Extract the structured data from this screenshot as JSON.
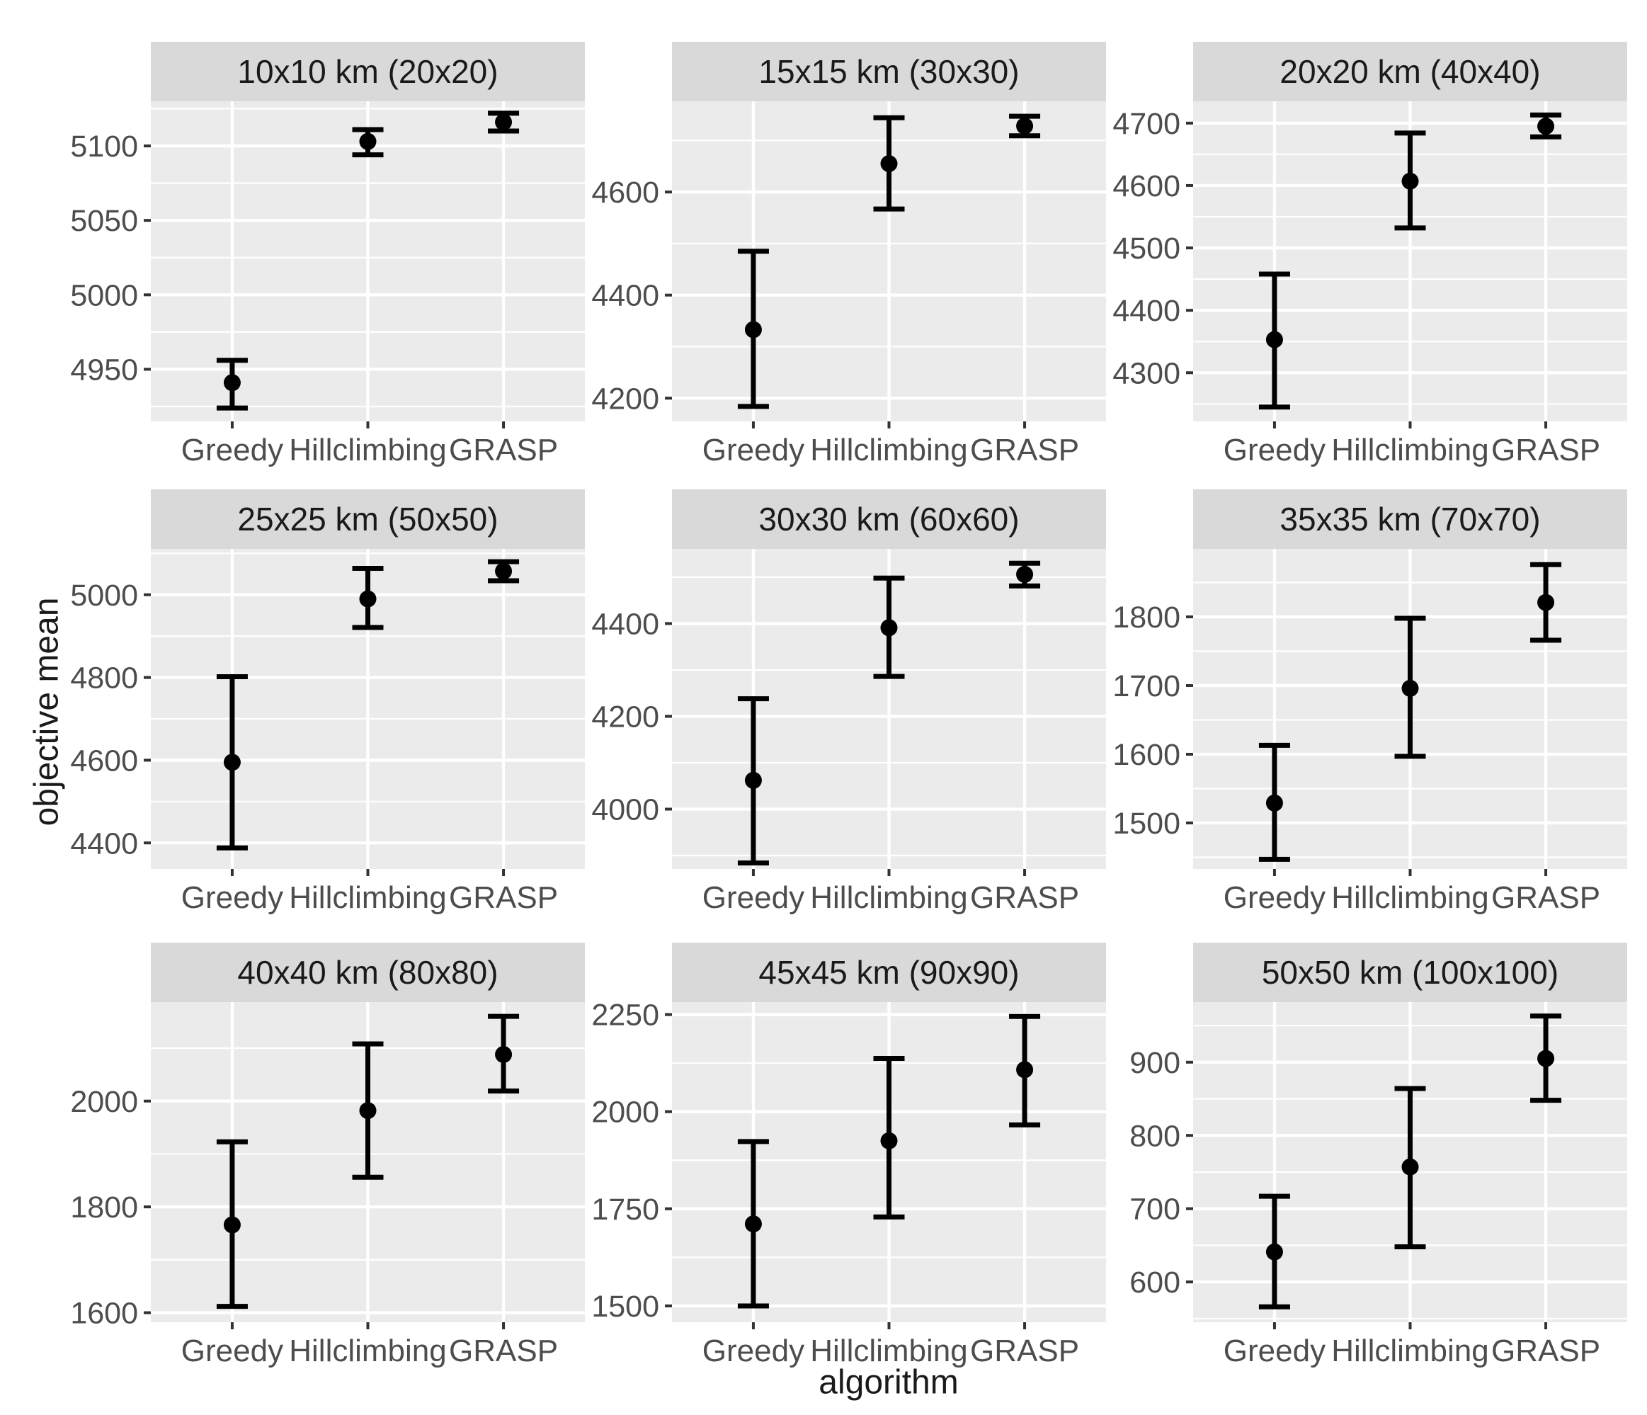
{
  "figure": {
    "ylabel": "objective mean",
    "xlabel": "algorithm"
  },
  "style": {
    "strip_fill": "#D9D9D9",
    "panel_fill": "#EBEBEB",
    "grid_color": "#FFFFFF",
    "tick_mark_color": "#333333",
    "tick_label_color": "#4D4D4D",
    "strip_text_color": "#1A1A1A",
    "axis_title_color": "#1A1A1A",
    "data_color": "#000000"
  },
  "chart_data": [
    {
      "type": "errorbar",
      "title": "10x10 km (20x20)",
      "categories": [
        "Greedy",
        "Hillclimbing",
        "GRASP"
      ],
      "yticks": [
        4950,
        5000,
        5050,
        5100
      ],
      "ylim": [
        4915,
        5130
      ],
      "grid": true,
      "series": [
        {
          "name": "Greedy",
          "mean": 4941,
          "lower": 4924,
          "upper": 4956
        },
        {
          "name": "Hillclimbing",
          "mean": 5103,
          "lower": 5094,
          "upper": 5111
        },
        {
          "name": "GRASP",
          "mean": 5116,
          "lower": 5110,
          "upper": 5122
        }
      ]
    },
    {
      "type": "errorbar",
      "title": "15x15 km (30x30)",
      "categories": [
        "Greedy",
        "Hillclimbing",
        "GRASP"
      ],
      "yticks": [
        4200,
        4400,
        4600
      ],
      "ylim": [
        4155,
        4776
      ],
      "grid": true,
      "series": [
        {
          "name": "Greedy",
          "mean": 4333,
          "lower": 4184,
          "upper": 4485
        },
        {
          "name": "Hillclimbing",
          "mean": 4655,
          "lower": 4567,
          "upper": 4744
        },
        {
          "name": "GRASP",
          "mean": 4728,
          "lower": 4709,
          "upper": 4747
        }
      ]
    },
    {
      "type": "errorbar",
      "title": "20x20 km (40x40)",
      "categories": [
        "Greedy",
        "Hillclimbing",
        "GRASP"
      ],
      "yticks": [
        4300,
        4400,
        4500,
        4600,
        4700
      ],
      "ylim": [
        4222,
        4735
      ],
      "grid": true,
      "series": [
        {
          "name": "Greedy",
          "mean": 4353,
          "lower": 4245,
          "upper": 4458
        },
        {
          "name": "Hillclimbing",
          "mean": 4607,
          "lower": 4532,
          "upper": 4684
        },
        {
          "name": "GRASP",
          "mean": 4695,
          "lower": 4678,
          "upper": 4713
        }
      ]
    },
    {
      "type": "errorbar",
      "title": "25x25 km (50x50)",
      "categories": [
        "Greedy",
        "Hillclimbing",
        "GRASP"
      ],
      "yticks": [
        4400,
        4600,
        4800,
        5000
      ],
      "ylim": [
        4337,
        5111
      ],
      "grid": true,
      "series": [
        {
          "name": "Greedy",
          "mean": 4595,
          "lower": 4388,
          "upper": 4802
        },
        {
          "name": "Hillclimbing",
          "mean": 4990,
          "lower": 4921,
          "upper": 5064
        },
        {
          "name": "GRASP",
          "mean": 5057,
          "lower": 5034,
          "upper": 5080
        }
      ]
    },
    {
      "type": "errorbar",
      "title": "30x30 km (60x60)",
      "categories": [
        "Greedy",
        "Hillclimbing",
        "GRASP"
      ],
      "yticks": [
        4000,
        4200,
        4400
      ],
      "ylim": [
        3871,
        4561
      ],
      "grid": true,
      "series": [
        {
          "name": "Greedy",
          "mean": 4062,
          "lower": 3884,
          "upper": 4238
        },
        {
          "name": "Hillclimbing",
          "mean": 4391,
          "lower": 4286,
          "upper": 4498
        },
        {
          "name": "GRASP",
          "mean": 4506,
          "lower": 4481,
          "upper": 4530
        }
      ]
    },
    {
      "type": "errorbar",
      "title": "35x35 km (70x70)",
      "categories": [
        "Greedy",
        "Hillclimbing",
        "GRASP"
      ],
      "yticks": [
        1500,
        1600,
        1700,
        1800
      ],
      "ylim": [
        1433,
        1899
      ],
      "grid": true,
      "series": [
        {
          "name": "Greedy",
          "mean": 1529,
          "lower": 1447,
          "upper": 1613
        },
        {
          "name": "Hillclimbing",
          "mean": 1696,
          "lower": 1597,
          "upper": 1798
        },
        {
          "name": "GRASP",
          "mean": 1821,
          "lower": 1766,
          "upper": 1876
        }
      ]
    },
    {
      "type": "errorbar",
      "title": "40x40 km (80x80)",
      "categories": [
        "Greedy",
        "Hillclimbing",
        "GRASP"
      ],
      "yticks": [
        1600,
        1800,
        2000
      ],
      "ylim": [
        1582,
        2187
      ],
      "grid": true,
      "series": [
        {
          "name": "Greedy",
          "mean": 1766,
          "lower": 1612,
          "upper": 1923
        },
        {
          "name": "Hillclimbing",
          "mean": 1982,
          "lower": 1856,
          "upper": 2108
        },
        {
          "name": "GRASP",
          "mean": 2088,
          "lower": 2019,
          "upper": 2160
        }
      ]
    },
    {
      "type": "errorbar",
      "title": "45x45 km (90x90)",
      "categories": [
        "Greedy",
        "Hillclimbing",
        "GRASP"
      ],
      "yticks": [
        1500,
        1750,
        2000,
        2250
      ],
      "ylim": [
        1458,
        2282
      ],
      "grid": true,
      "series": [
        {
          "name": "Greedy",
          "mean": 1711,
          "lower": 1500,
          "upper": 1923
        },
        {
          "name": "Hillclimbing",
          "mean": 1925,
          "lower": 1729,
          "upper": 2137
        },
        {
          "name": "GRASP",
          "mean": 2108,
          "lower": 1966,
          "upper": 2245
        }
      ]
    },
    {
      "type": "errorbar",
      "title": "50x50 km (100x100)",
      "categories": [
        "Greedy",
        "Hillclimbing",
        "GRASP"
      ],
      "yticks": [
        600,
        700,
        800,
        900
      ],
      "ylim": [
        545,
        982
      ],
      "grid": true,
      "series": [
        {
          "name": "Greedy",
          "mean": 641,
          "lower": 566,
          "upper": 717
        },
        {
          "name": "Hillclimbing",
          "mean": 757,
          "lower": 648,
          "upper": 864
        },
        {
          "name": "GRASP",
          "mean": 905,
          "lower": 848,
          "upper": 963
        }
      ]
    }
  ]
}
